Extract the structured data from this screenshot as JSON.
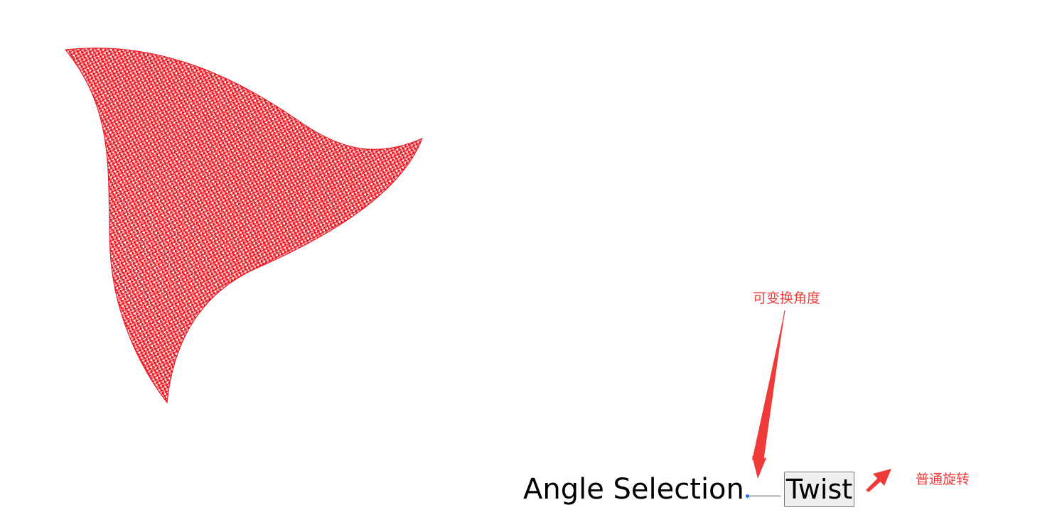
{
  "annotations": {
    "angle_note": "可变换角度",
    "rotate_note": "普通旋转"
  },
  "controls": {
    "angle_label": "Angle Selection",
    "angle_value": 0,
    "twist_label": "Twist"
  },
  "colors": {
    "mesh": "#e8141e",
    "annotation": "#ef3a3a",
    "slider_thumb": "#1a73e8"
  },
  "icons": {
    "arrow_down": "arrow-pointing-down-icon",
    "arrow_up_right": "arrow-pointing-up-right-icon"
  }
}
